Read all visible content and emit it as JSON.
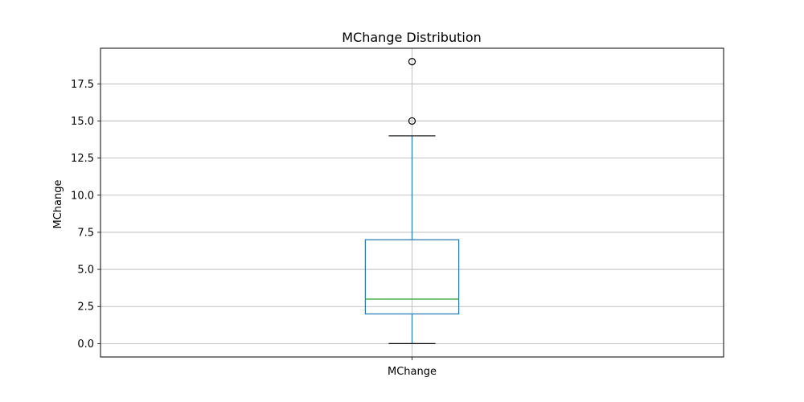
{
  "chart_data": {
    "type": "box",
    "title": "MChange Distribution",
    "xlabel": "",
    "ylabel": "MChange",
    "categories": [
      "MChange"
    ],
    "ylim": [
      -0.9,
      19.9
    ],
    "yticks": [
      0.0,
      2.5,
      5.0,
      7.5,
      10.0,
      12.5,
      15.0,
      17.5
    ],
    "yticklabels": [
      "0.0",
      "2.5",
      "5.0",
      "7.5",
      "10.0",
      "12.5",
      "15.0",
      "17.5"
    ],
    "grid": true,
    "series": [
      {
        "whisker_low": 0,
        "q1": 2,
        "median": 3,
        "q3": 7,
        "whisker_high": 14,
        "outliers": [
          15,
          19
        ]
      }
    ],
    "colors": {
      "box": "#1f77b4",
      "median": "#2ca02c",
      "whisker_cap": "#000000",
      "grid": "#b0b0b0",
      "outlier_edge": "#000000"
    }
  }
}
